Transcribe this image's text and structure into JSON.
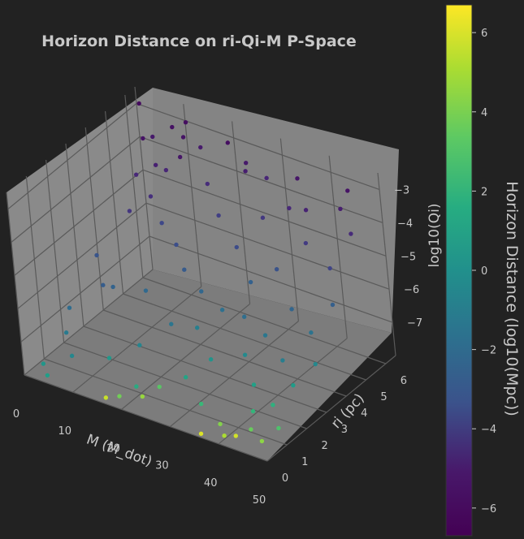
{
  "chart_data": {
    "type": "scatter",
    "title": "Horizon Distance on ri-Qi-M P-Space",
    "xlabel": "M (M_dot)",
    "ylabel": "ri (pc)",
    "zlabel": "log10(Qi)",
    "colorbar_label": "Horizon Distance (log10(Mpc))",
    "colormap": "viridis",
    "xlim": [
      0,
      50
    ],
    "ylim": [
      0,
      6.5
    ],
    "zlim": [
      -8,
      -2.5
    ],
    "clim": [
      -6.7,
      6.7
    ],
    "x_ticks": [
      "0",
      "10",
      "20",
      "30",
      "40",
      "50"
    ],
    "y_ticks": [
      "0",
      "1",
      "2",
      "3",
      "4",
      "5",
      "6"
    ],
    "z_ticks": [
      "−7",
      "−6",
      "−5",
      "−4",
      "−3"
    ],
    "colorbar_ticks": [
      "−6",
      "−4",
      "−2",
      "0",
      "2",
      "4",
      "6"
    ],
    "grid": true,
    "colors": {
      "background": "#222222",
      "pane": "#808080",
      "text": "#c8c8c8",
      "grid": "#5a5a5a"
    },
    "points": [
      {
        "x": 2,
        "y": 6.2,
        "z": -3.8,
        "c": -6.0
      },
      {
        "x": 5,
        "y": 6.0,
        "z": -3.5,
        "c": -5.8
      },
      {
        "x": 8,
        "y": 6.3,
        "z": -3.2,
        "c": -6.1
      },
      {
        "x": 3,
        "y": 5.5,
        "z": -4.5,
        "c": -5.2
      },
      {
        "x": 6,
        "y": 5.8,
        "z": -4.2,
        "c": -5.5
      },
      {
        "x": 10,
        "y": 6.1,
        "z": -3.9,
        "c": -5.9
      },
      {
        "x": 1,
        "y": 6.4,
        "z": -2.9,
        "c": -6.3
      },
      {
        "x": 12,
        "y": 5.9,
        "z": -3.1,
        "c": -6.0
      },
      {
        "x": 4,
        "y": 4.8,
        "z": -5.2,
        "c": -4.6
      },
      {
        "x": 7,
        "y": 5.2,
        "z": -4.8,
        "c": -4.9
      },
      {
        "x": 2,
        "y": 3.5,
        "z": -6.0,
        "c": -3.2
      },
      {
        "x": 5,
        "y": 3.0,
        "z": -6.5,
        "c": -2.8
      },
      {
        "x": 1,
        "y": 2.2,
        "z": -7.0,
        "c": -2.0
      },
      {
        "x": 3,
        "y": 1.5,
        "z": -7.3,
        "c": -1.2
      },
      {
        "x": 6,
        "y": 1.0,
        "z": -7.6,
        "c": -0.5
      },
      {
        "x": 2,
        "y": 0.5,
        "z": -7.8,
        "c": 0.3
      },
      {
        "x": 4,
        "y": 0.2,
        "z": -7.9,
        "c": 0.8
      },
      {
        "x": 15,
        "y": 6.0,
        "z": -3.3,
        "c": -5.7
      },
      {
        "x": 18,
        "y": 5.5,
        "z": -4.0,
        "c": -5.0
      },
      {
        "x": 20,
        "y": 6.2,
        "z": -3.0,
        "c": -6.2
      },
      {
        "x": 22,
        "y": 5.0,
        "z": -4.5,
        "c": -4.2
      },
      {
        "x": 16,
        "y": 4.2,
        "z": -5.3,
        "c": -3.5
      },
      {
        "x": 19,
        "y": 3.8,
        "z": -5.7,
        "c": -2.9
      },
      {
        "x": 14,
        "y": 3.0,
        "z": -6.2,
        "c": -2.2
      },
      {
        "x": 21,
        "y": 2.5,
        "z": -6.6,
        "c": -1.5
      },
      {
        "x": 17,
        "y": 1.8,
        "z": -7.1,
        "c": -0.6
      },
      {
        "x": 13,
        "y": 1.2,
        "z": -7.4,
        "c": 0.4
      },
      {
        "x": 20,
        "y": 0.8,
        "z": -7.7,
        "c": 1.5
      },
      {
        "x": 18,
        "y": 0.4,
        "z": -7.9,
        "c": 3.8
      },
      {
        "x": 22,
        "y": 0.6,
        "z": -7.8,
        "c": 4.6
      },
      {
        "x": 24,
        "y": 1.0,
        "z": -7.6,
        "c": 3.2
      },
      {
        "x": 16,
        "y": 0.2,
        "z": -7.95,
        "c": 5.6
      },
      {
        "x": 25,
        "y": 5.8,
        "z": -3.4,
        "c": -5.6
      },
      {
        "x": 28,
        "y": 6.1,
        "z": -3.6,
        "c": -5.3
      },
      {
        "x": 30,
        "y": 5.3,
        "z": -4.3,
        "c": -4.5
      },
      {
        "x": 27,
        "y": 4.6,
        "z": -5.0,
        "c": -3.6
      },
      {
        "x": 32,
        "y": 4.0,
        "z": -5.5,
        "c": -2.6
      },
      {
        "x": 29,
        "y": 3.2,
        "z": -6.1,
        "c": -1.8
      },
      {
        "x": 26,
        "y": 2.6,
        "z": -6.5,
        "c": -0.9
      },
      {
        "x": 31,
        "y": 2.0,
        "z": -6.9,
        "c": 0.2
      },
      {
        "x": 28,
        "y": 1.4,
        "z": -7.3,
        "c": 1.1
      },
      {
        "x": 33,
        "y": 0.9,
        "z": -7.6,
        "c": 2.3
      },
      {
        "x": 35,
        "y": 6.0,
        "z": -3.2,
        "c": -5.9
      },
      {
        "x": 38,
        "y": 5.6,
        "z": -3.8,
        "c": -5.4
      },
      {
        "x": 40,
        "y": 5.0,
        "z": -4.4,
        "c": -4.4
      },
      {
        "x": 36,
        "y": 4.4,
        "z": -5.1,
        "c": -3.3
      },
      {
        "x": 42,
        "y": 3.6,
        "z": -5.6,
        "c": -2.4
      },
      {
        "x": 39,
        "y": 2.9,
        "z": -6.2,
        "c": -1.4
      },
      {
        "x": 37,
        "y": 2.3,
        "z": -6.6,
        "c": -0.3
      },
      {
        "x": 41,
        "y": 1.7,
        "z": -7.0,
        "c": 0.9
      },
      {
        "x": 43,
        "y": 1.1,
        "z": -7.4,
        "c": 2.1
      },
      {
        "x": 38,
        "y": 0.6,
        "z": -7.8,
        "c": 4.2
      },
      {
        "x": 40,
        "y": 0.3,
        "z": -7.9,
        "c": 5.0
      },
      {
        "x": 42,
        "y": 0.4,
        "z": -7.85,
        "c": 5.8
      },
      {
        "x": 44,
        "y": 0.7,
        "z": -7.7,
        "c": 3.6
      },
      {
        "x": 36,
        "y": 0.1,
        "z": -7.95,
        "c": 6.0
      },
      {
        "x": 45,
        "y": 6.1,
        "z": -3.1,
        "c": -6.0
      },
      {
        "x": 48,
        "y": 5.4,
        "z": -3.9,
        "c": -5.1
      },
      {
        "x": 46,
        "y": 4.7,
        "z": -4.7,
        "c": -4.0
      },
      {
        "x": 49,
        "y": 4.0,
        "z": -5.3,
        "c": -2.7
      },
      {
        "x": 47,
        "y": 3.3,
        "z": -5.9,
        "c": -1.6
      },
      {
        "x": 50,
        "y": 2.7,
        "z": -6.4,
        "c": -0.4
      },
      {
        "x": 48,
        "y": 2.0,
        "z": -6.8,
        "c": 0.7
      },
      {
        "x": 46,
        "y": 1.4,
        "z": -7.2,
        "c": 1.8
      },
      {
        "x": 49,
        "y": 0.9,
        "z": -7.5,
        "c": 2.9
      },
      {
        "x": 47,
        "y": 0.5,
        "z": -7.8,
        "c": 4.4
      },
      {
        "x": 11,
        "y": 6.3,
        "z": -2.9,
        "c": -6.2
      },
      {
        "x": 9,
        "y": 5.6,
        "z": -4.1,
        "c": -5.3
      },
      {
        "x": 23,
        "y": 6.3,
        "z": -3.5,
        "c": -5.8
      },
      {
        "x": 34,
        "y": 5.7,
        "z": -4.0,
        "c": -5.2
      },
      {
        "x": 44,
        "y": 5.9,
        "z": -3.6,
        "c": -5.6
      },
      {
        "x": 8,
        "y": 2.8,
        "z": -6.3,
        "c": -2.5
      },
      {
        "x": 24,
        "y": 3.4,
        "z": -5.9,
        "c": -2.3
      },
      {
        "x": 34,
        "y": 3.1,
        "z": -6.0,
        "c": -1.9
      },
      {
        "x": 12,
        "y": 4.5,
        "z": -5.0,
        "c": -3.8
      },
      {
        "x": 44,
        "y": 2.5,
        "z": -6.5,
        "c": -1.0
      }
    ]
  }
}
